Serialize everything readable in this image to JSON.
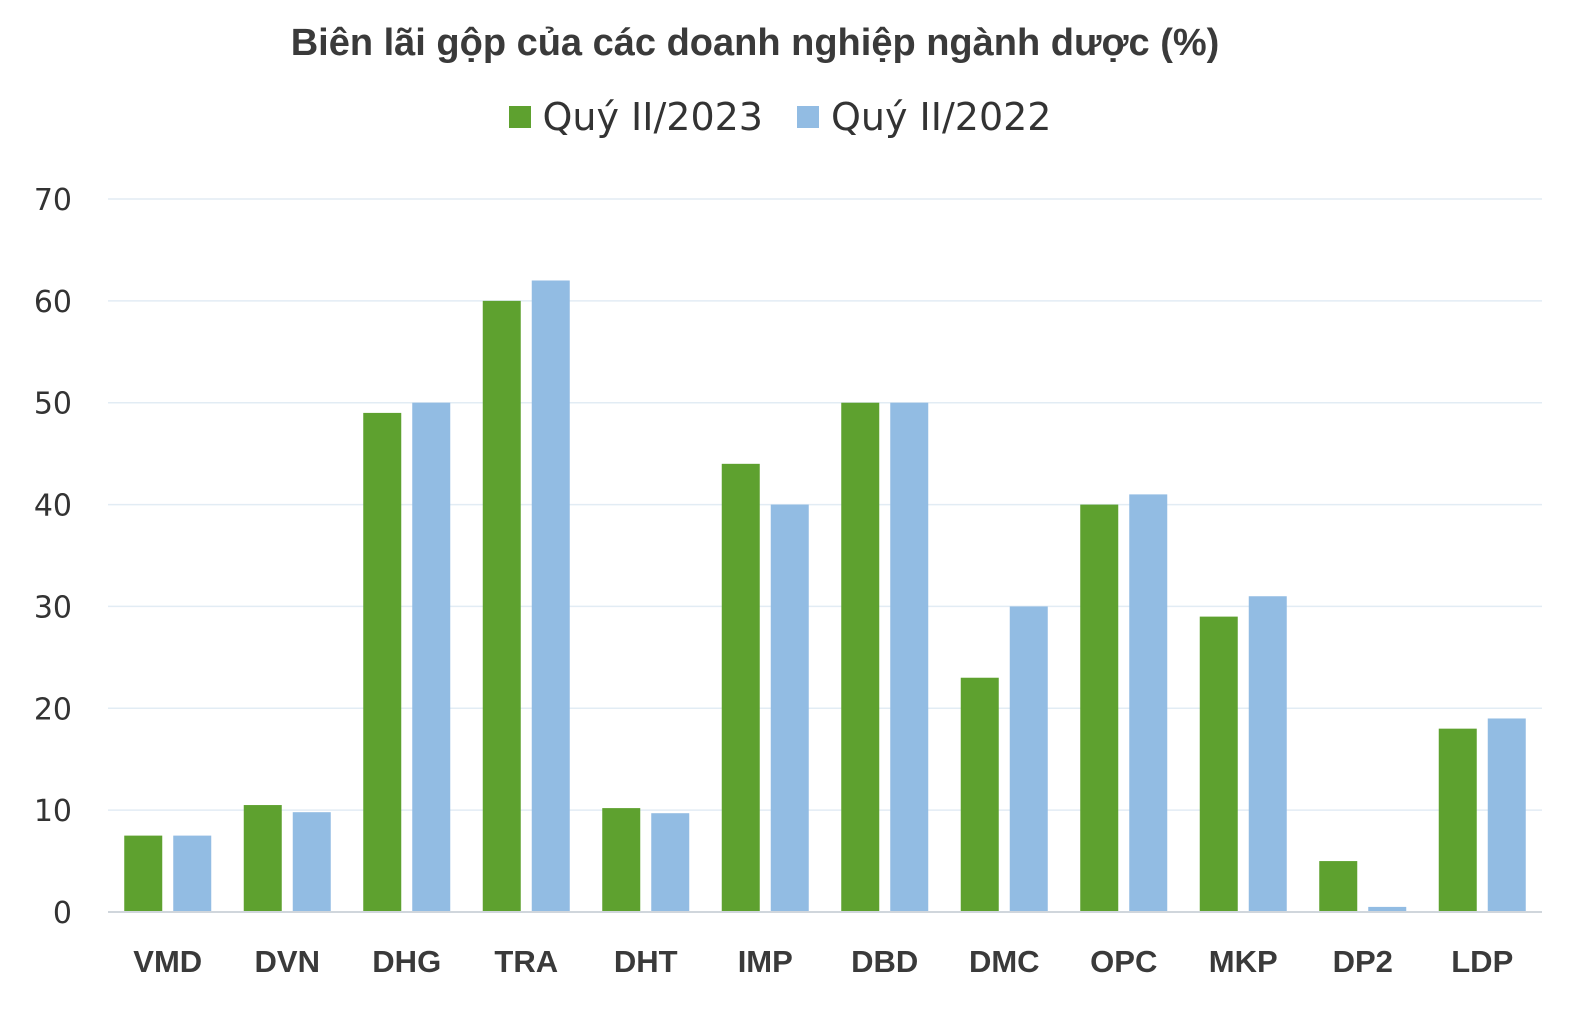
{
  "chart_data": {
    "type": "bar",
    "title": "Biên lãi gộp của các doanh nghiệp ngành dược (%)",
    "categories": [
      "VMD",
      "DVN",
      "DHG",
      "TRA",
      "DHT",
      "IMP",
      "DBD",
      "DMC",
      "OPC",
      "MKP",
      "DP2",
      "LDP"
    ],
    "series": [
      {
        "name": "Quý II/2023",
        "color": "#5ea12f",
        "values": [
          7.5,
          10.5,
          49,
          60,
          10.2,
          44,
          50,
          23,
          40,
          29,
          5,
          18
        ]
      },
      {
        "name": "Quý II/2022",
        "color": "#92bce3",
        "values": [
          7.5,
          9.8,
          50,
          62,
          9.7,
          40,
          50,
          30,
          41,
          31,
          0.5,
          19
        ]
      }
    ],
    "ylim": [
      0,
      70
    ],
    "yticks": [
      0,
      10,
      20,
      30,
      40,
      50,
      60,
      70
    ],
    "xlabel": "",
    "ylabel": "",
    "grid": true,
    "legend_position": "top"
  }
}
